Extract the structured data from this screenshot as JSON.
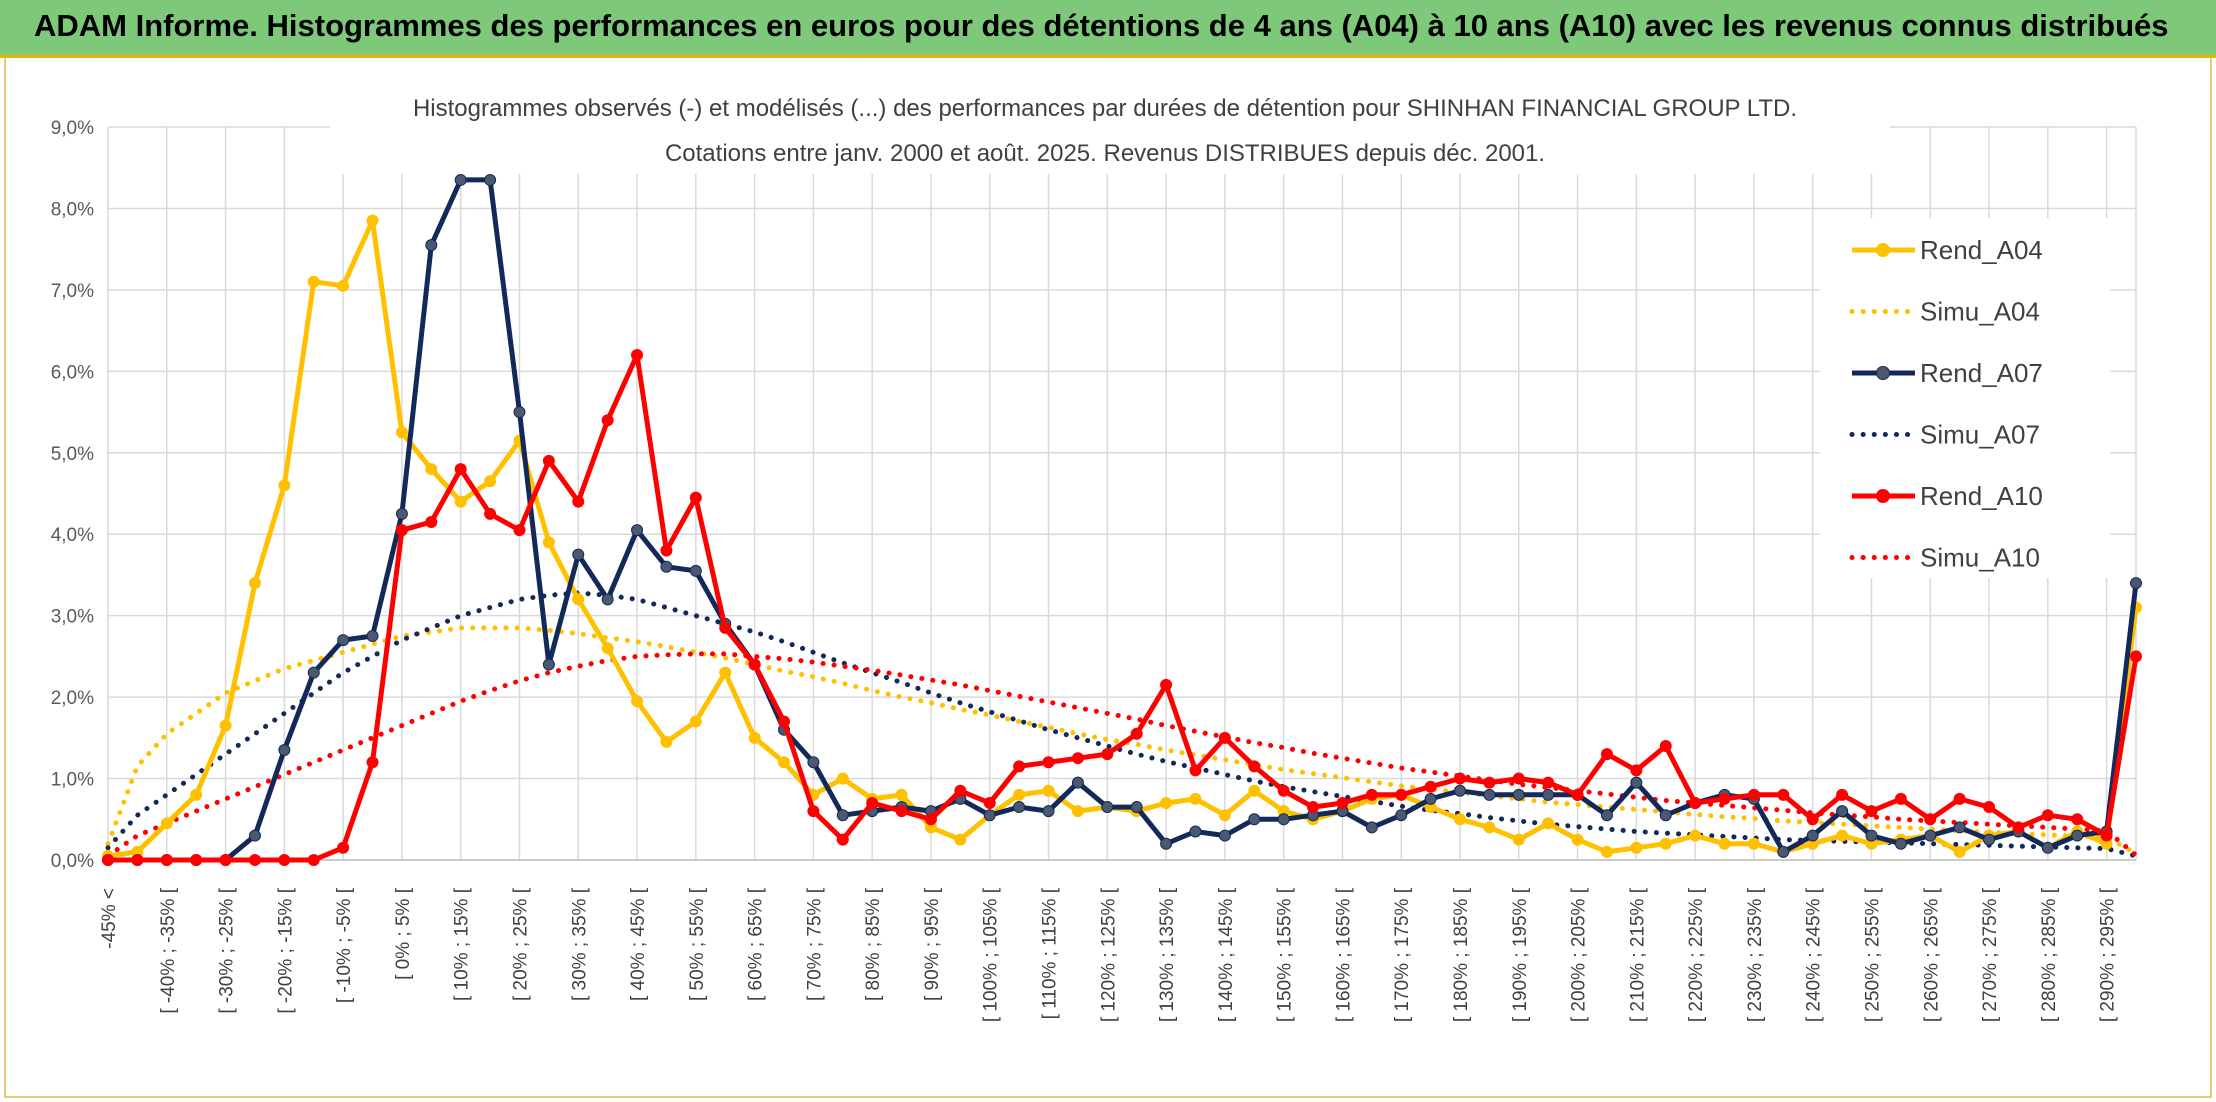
{
  "header": {
    "title": "ADAM Informe. Histogrammes des performances en euros pour des détentions de 4 ans (A04) à 10 ans (A10) avec les revenus connus distribués"
  },
  "colors": {
    "banner": "#7ec87a",
    "A04": "#ffc000",
    "A07": "#13295a",
    "A10": "#ff0000",
    "grid": "#d9d9d9"
  },
  "chart_data": {
    "type": "line",
    "title_lines": [
      "Histogrammes observés (-) et modélisés (...) des performances par durées de détention pour SHINHAN FINANCIAL GROUP LTD.",
      "Cotations entre janv. 2000 et août. 2025. Revenus DISTRIBUES depuis déc. 2001."
    ],
    "y_ticks": [
      "0,0%",
      "1,0%",
      "2,0%",
      "3,0%",
      "4,0%",
      "5,0%",
      "6,0%",
      "7,0%",
      "8,0%",
      "9,0%"
    ],
    "ylim": [
      0,
      9
    ],
    "y_unit": "%",
    "grid": true,
    "legend_position": "right",
    "x_tick_labels": [
      "-45% <",
      "[ -40% ; -35% [",
      "[ -30% ; -25% [",
      "[ -20% ; -15% [",
      "[ -10% ; -5% [",
      "[ 0% ; 5% [",
      "[ 10% ; 15% [",
      "[ 20% ; 25% [",
      "[ 30% ; 35% [",
      "[ 40% ; 45% [",
      "[ 50% ; 55% [",
      "[ 60% ; 65% [",
      "[ 70% ; 75% [",
      "[ 80% ; 85% [",
      "[ 90% ; 95% [",
      "[ 100% ; 105% [",
      "[ 110% ; 115% [",
      "[ 120% ; 125% [",
      "[ 130% ; 135% [",
      "[ 140% ; 145% [",
      "[ 150% ; 155% [",
      "[ 160% ; 165% [",
      "[ 170% ; 175% [",
      "[ 180% ; 185% [",
      "[ 190% ; 195% [",
      "[ 200% ; 205% [",
      "[ 210% ; 215% [",
      "[ 220% ; 225% [",
      "[ 230% ; 235% [",
      "[ 240% ; 245% [",
      "[ 250% ; 255% [",
      "[ 260% ; 265% [",
      "[ 270% ; 275% [",
      "[ 280% ; 285% [",
      "[ 290% ; 295% ["
    ],
    "x_tick_every": 2,
    "n_points": 70,
    "series": [
      {
        "name": "Rend_A04",
        "style": "solid",
        "color": "#ffc000",
        "values": [
          0.05,
          0.1,
          0.45,
          0.8,
          1.65,
          3.4,
          4.6,
          7.1,
          7.05,
          7.85,
          5.25,
          4.8,
          4.4,
          4.65,
          5.15,
          3.9,
          3.2,
          2.6,
          1.95,
          1.45,
          1.7,
          2.3,
          1.5,
          1.2,
          0.8,
          1.0,
          0.75,
          0.8,
          0.4,
          0.25,
          0.55,
          0.8,
          0.85,
          0.6,
          0.65,
          0.6,
          0.7,
          0.75,
          0.55,
          0.85,
          0.6,
          0.5,
          0.6,
          0.75,
          0.8,
          0.65,
          0.5,
          0.4,
          0.25,
          0.45,
          0.25,
          0.1,
          0.15,
          0.2,
          0.3,
          0.2,
          0.2,
          0.1,
          0.2,
          0.3,
          0.2,
          0.25,
          0.3,
          0.1,
          0.3,
          0.35,
          0.15,
          0.35,
          0.2,
          3.1
        ]
      },
      {
        "name": "Simu_A04",
        "style": "dotted",
        "color": "#ffc000",
        "values": [
          0.2,
          1.15,
          1.55,
          1.8,
          2.05,
          2.2,
          2.35,
          2.45,
          2.55,
          2.65,
          2.75,
          2.8,
          2.85,
          2.85,
          2.85,
          2.82,
          2.78,
          2.73,
          2.68,
          2.62,
          2.55,
          2.48,
          2.4,
          2.32,
          2.25,
          2.17,
          2.08,
          2.0,
          1.93,
          1.85,
          1.78,
          1.7,
          1.63,
          1.55,
          1.48,
          1.42,
          1.35,
          1.29,
          1.23,
          1.17,
          1.11,
          1.06,
          1.01,
          0.96,
          0.91,
          0.87,
          0.83,
          0.79,
          0.75,
          0.71,
          0.68,
          0.65,
          0.62,
          0.59,
          0.56,
          0.53,
          0.51,
          0.48,
          0.46,
          0.44,
          0.42,
          0.4,
          0.38,
          0.36,
          0.34,
          0.32,
          0.31,
          0.29,
          0.28,
          0.08
        ]
      },
      {
        "name": "Rend_A07",
        "style": "solid",
        "color": "#13295a",
        "values": [
          0,
          0,
          0,
          0,
          0,
          0.3,
          1.35,
          2.3,
          2.7,
          2.75,
          4.25,
          7.55,
          8.35,
          8.35,
          5.5,
          2.4,
          3.75,
          3.2,
          4.05,
          3.6,
          3.55,
          2.9,
          2.4,
          1.6,
          1.2,
          0.55,
          0.6,
          0.65,
          0.6,
          0.75,
          0.55,
          0.65,
          0.6,
          0.95,
          0.65,
          0.65,
          0.2,
          0.35,
          0.3,
          0.5,
          0.5,
          0.55,
          0.6,
          0.4,
          0.55,
          0.75,
          0.85,
          0.8,
          0.8,
          0.8,
          0.8,
          0.55,
          0.95,
          0.55,
          0.7,
          0.8,
          0.75,
          0.1,
          0.3,
          0.6,
          0.3,
          0.2,
          0.3,
          0.4,
          0.25,
          0.35,
          0.15,
          0.3,
          0.35,
          3.4
        ]
      },
      {
        "name": "Simu_A07",
        "style": "dotted",
        "color": "#13295a",
        "values": [
          0.15,
          0.55,
          0.8,
          1.05,
          1.3,
          1.55,
          1.8,
          2.05,
          2.3,
          2.5,
          2.7,
          2.85,
          3.0,
          3.1,
          3.2,
          3.25,
          3.28,
          3.25,
          3.2,
          3.1,
          3.0,
          2.9,
          2.8,
          2.68,
          2.55,
          2.42,
          2.3,
          2.18,
          2.05,
          1.93,
          1.82,
          1.71,
          1.6,
          1.5,
          1.4,
          1.3,
          1.21,
          1.13,
          1.05,
          0.97,
          0.9,
          0.84,
          0.78,
          0.72,
          0.66,
          0.61,
          0.57,
          0.52,
          0.48,
          0.44,
          0.41,
          0.38,
          0.35,
          0.33,
          0.31,
          0.29,
          0.27,
          0.25,
          0.24,
          0.23,
          0.22,
          0.21,
          0.2,
          0.19,
          0.18,
          0.17,
          0.16,
          0.15,
          0.14,
          0.05
        ]
      },
      {
        "name": "Rend_A10",
        "style": "solid",
        "color": "#ff0000",
        "values": [
          0,
          0,
          0,
          0,
          0,
          0,
          0,
          0,
          0.15,
          1.2,
          4.05,
          4.15,
          4.8,
          4.25,
          4.05,
          4.9,
          4.4,
          5.4,
          6.2,
          3.8,
          4.45,
          2.85,
          2.4,
          1.7,
          0.6,
          0.25,
          0.7,
          0.6,
          0.5,
          0.85,
          0.7,
          1.15,
          1.2,
          1.25,
          1.3,
          1.55,
          2.15,
          1.1,
          1.5,
          1.15,
          0.85,
          0.65,
          0.7,
          0.8,
          0.8,
          0.9,
          1.0,
          0.95,
          1.0,
          0.95,
          0.8,
          1.3,
          1.1,
          1.4,
          0.7,
          0.75,
          0.8,
          0.8,
          0.5,
          0.8,
          0.6,
          0.75,
          0.5,
          0.75,
          0.65,
          0.4,
          0.55,
          0.5,
          0.3,
          2.5
        ]
      },
      {
        "name": "Simu_A10",
        "style": "dotted",
        "color": "#ff0000",
        "values": [
          0.05,
          0.3,
          0.45,
          0.6,
          0.75,
          0.9,
          1.05,
          1.2,
          1.35,
          1.5,
          1.65,
          1.8,
          1.95,
          2.08,
          2.2,
          2.3,
          2.38,
          2.45,
          2.5,
          2.52,
          2.53,
          2.53,
          2.5,
          2.47,
          2.43,
          2.38,
          2.33,
          2.27,
          2.21,
          2.15,
          2.08,
          2.01,
          1.94,
          1.87,
          1.8,
          1.73,
          1.65,
          1.58,
          1.51,
          1.44,
          1.38,
          1.31,
          1.25,
          1.19,
          1.13,
          1.08,
          1.03,
          0.98,
          0.93,
          0.89,
          0.85,
          0.81,
          0.77,
          0.73,
          0.7,
          0.67,
          0.64,
          0.61,
          0.58,
          0.55,
          0.53,
          0.5,
          0.48,
          0.46,
          0.44,
          0.42,
          0.4,
          0.38,
          0.36,
          0.06
        ]
      }
    ]
  }
}
